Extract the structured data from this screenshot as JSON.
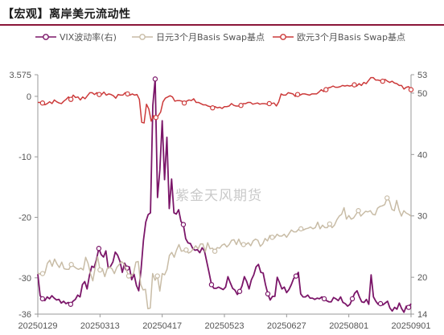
{
  "title": "【宏观】离岸美元流动性",
  "watermark": "紫金天风期货",
  "colors": {
    "vix": "#7b1669",
    "jpy": "#c8bca6",
    "eur": "#cc3a3a",
    "axis": "#999999",
    "title_rule": "#8a1538"
  },
  "chart_data": {
    "type": "line",
    "x_tick_labels": [
      "20250129",
      "20250313",
      "20250417",
      "20250523",
      "20250627",
      "20250801",
      "20250901"
    ],
    "left_axis": {
      "ticks": [
        3.575,
        0,
        -10,
        -20,
        -30,
        -36
      ],
      "tick_labels": [
        "3.575",
        "0",
        "-10",
        "-20",
        "-30",
        "-36"
      ],
      "ylim": [
        -36,
        3.575
      ]
    },
    "right_axis": {
      "ticks": [
        53,
        50,
        40,
        30,
        20,
        14
      ],
      "tick_labels": [
        "53",
        "50",
        "40",
        "30",
        "20",
        "14"
      ],
      "ylim": [
        14,
        53
      ]
    },
    "legend_position": "top",
    "series": [
      {
        "name": "VIX波动率(右)",
        "axis": "right",
        "marker": "circle",
        "marker_every": 12,
        "values": [
          20.5,
          17,
          16.5,
          16.2,
          16.8,
          16.5,
          17,
          16.6,
          16.3,
          16.4,
          15.8,
          16.1,
          15.7,
          15.9,
          15.6,
          16.1,
          16.4,
          17.1,
          16.8,
          18.8,
          19.3,
          18.1,
          20.3,
          21.8,
          21.6,
          22.9,
          24.7,
          23.7,
          23.3,
          24.3,
          21.5,
          21.8,
          22.5,
          24.1,
          23.6,
          22.6,
          20.8,
          22.3,
          21.5,
          21.7,
          19.6,
          20.5,
          18.7,
          17.8,
          21.3,
          26,
          29,
          30.2,
          30.5,
          48,
          52.3,
          33,
          37.5,
          45.5,
          35.9,
          42.8,
          31.2,
          36,
          30.5,
          30.3,
          31,
          29.1,
          28.6,
          26.3,
          25.6,
          25.5,
          24.7,
          24.4,
          24.5,
          24,
          24.8,
          24.3,
          22.5,
          20.7,
          18.8,
          18.2,
          18.2,
          18.4,
          18.2,
          18,
          18.4,
          20.1,
          19.1,
          18.2,
          17.9,
          17.2,
          17.7,
          18.6,
          20.1,
          19.3,
          18.1,
          19.6,
          20.4,
          21.7,
          22.1,
          20.8,
          20.7,
          18.8,
          17.3,
          16.3,
          16.9,
          16.9,
          20,
          19.1,
          18.1,
          18.4,
          17.5,
          18,
          18.8,
          19.8,
          20.2,
          20.8,
          17.3,
          16.8,
          16.8,
          17.1,
          16.6,
          16.6,
          16.4,
          16.6,
          16.5,
          16.8,
          16.5,
          16.2,
          16,
          16,
          16.7,
          16.5,
          16.2,
          16.8,
          15.9,
          15.7,
          15.3,
          15.6,
          16.5,
          17.4,
          17.8,
          16.8,
          16,
          15.9,
          16.4,
          15.6,
          20.4,
          16.8,
          16.1,
          15.6,
          15.7,
          15.5,
          15.8,
          16.1,
          15,
          14.5,
          15.1,
          14.8,
          15.8,
          14.9,
          14.3,
          15.3,
          15.1,
          15.7
        ]
      },
      {
        "name": "日元3个月Basis Swap基点",
        "axis": "left",
        "marker": "circle",
        "marker_every": 12,
        "values": [
          -29.2,
          -29.4,
          -29.3,
          -29.2,
          -27.6,
          -27.1,
          -28.1,
          -26.9,
          -27.7,
          -28.3,
          -27.4,
          -28.5,
          -28.6,
          -28.6,
          -27.8,
          -28.1,
          -28.4,
          -28.6,
          -28.4,
          -28.7,
          -26.6,
          -27.6,
          -29.3,
          -30.5,
          -28.3,
          -26.5,
          -28.7,
          -28.5,
          -29.8,
          -28.5,
          -28.2,
          -28.5,
          -29.3,
          -28.3,
          -27.8,
          -27.3,
          -27.7,
          -28.7,
          -29.7,
          -29.7,
          -29.3,
          -27.4,
          -27.3,
          -31.1,
          -32,
          -31.9,
          -35.1,
          -35,
          -29.3,
          -30.4,
          -29.7,
          -32.2,
          -29.3,
          -29.5,
          -28.6,
          -26.3,
          -25.8,
          -26.6,
          -25.4,
          -24.5,
          -25.6,
          -25.5,
          -25.4,
          -25.9,
          -25.7,
          -25.2,
          -24.7,
          -25.2,
          -24.4,
          -24.4,
          -25.7,
          -24.2,
          -25.2,
          -25.1,
          -25.6,
          -25,
          -25.1,
          -24.6,
          -24.4,
          -24.9,
          -24.5,
          -23.8,
          -23.7,
          -24.5,
          -23.6,
          -24.5,
          -24.5,
          -24.5,
          -24.2,
          -24.7,
          -23.9,
          -23.6,
          -23.8,
          -24.8,
          -24.4,
          -23.5,
          -23.9,
          -23,
          -23.3,
          -23.4,
          -22.8,
          -23.1,
          -23.1,
          -22.8,
          -23.3,
          -22.7,
          -22.1,
          -22.4,
          -22.4,
          -22,
          -21.9,
          -22.1,
          -21.9,
          -21.8,
          -21.6,
          -21.9,
          -21.7,
          -20.8,
          -21.9,
          -21.3,
          -21.7,
          -21.7,
          -21.1,
          -21.7,
          -21.3,
          -20.4,
          -19.8,
          -19.5,
          -18.4,
          -20.3,
          -19.7,
          -20.3,
          -20.1,
          -19.5,
          -18.9,
          -19.8,
          -19.4,
          -19,
          -19.1,
          -18.9,
          -19.5,
          -19.6,
          -18.5,
          -18.2,
          -18.1,
          -17.9,
          -16.8,
          -17.3,
          -18.7,
          -18.9,
          -17.2,
          -18.8,
          -19.8,
          -18.9,
          -19.3,
          -19.5,
          -19.8
        ]
      },
      {
        "name": "欧元3个月Basis Swap基点",
        "axis": "left",
        "marker": "circle",
        "marker_every": 12,
        "values": [
          -1,
          -1,
          -1.1,
          -1.4,
          -1.2,
          -0.9,
          -1.2,
          -0.6,
          -0.9,
          -1.1,
          -1.2,
          -0.8,
          -0.5,
          -0.1,
          -0.5,
          0.2,
          -0.2,
          -0.1,
          -0.6,
          -0.1,
          -0.4,
          0.1,
          0.6,
          0.6,
          0.3,
          0.6,
          0.3,
          0.3,
          0.7,
          0.2,
          0.4,
          0.3,
          0.1,
          -0.3,
          0.3,
          0.2,
          0.2,
          0.6,
          0.4,
          0.2,
          0.4,
          0.2,
          0.3,
          -0.5,
          -4.3,
          -4.4,
          -1.3,
          -2.1,
          -4.1,
          -3.2,
          -3.5,
          -3.2,
          -2.6,
          -0.9,
          -0.3,
          -0.1,
          0.1,
          -0.1,
          -0.8,
          -0.7,
          -0.7,
          -0.8,
          -1.1,
          -0.8,
          -0.6,
          -0.7,
          -0.4,
          -1,
          -1,
          -1.2,
          -1.4,
          -1.4,
          -1.6,
          -1.7,
          -1.9,
          -1.7,
          -1.9,
          -1.8,
          -2,
          -1.7,
          -1.7,
          -1.6,
          -1.2,
          -1.5,
          -1.6,
          -1.6,
          -1.5,
          -1.2,
          -1.2,
          -1,
          -1,
          -1.3,
          -1.2,
          -1.1,
          -1.3,
          -1.2,
          -1.2,
          -1.3,
          -1.2,
          -1.2,
          -1.1,
          -1.6,
          -0.9,
          0.4,
          0.2,
          0.2,
          0.6,
          0.5,
          0.4,
          0,
          0.3,
          0.2,
          0.4,
          0.4,
          0.3,
          0.2,
          0.4,
          0.4,
          0.4,
          0.7,
          1.1,
          0.8,
          1.1,
          1.4,
          1.5,
          1.7,
          1.5,
          1.5,
          1.6,
          1.8,
          1.7,
          1.8,
          1.7,
          1.8,
          1.9,
          1.7,
          2.1,
          1.8,
          2.3,
          2.1,
          2.6,
          3.1,
          3.1,
          2.7,
          2.7,
          2.6,
          2.5,
          2.8,
          2.5,
          2.3,
          2.5,
          2.2,
          2.1,
          1.8,
          1.8,
          1.2,
          1.5,
          1.6,
          1.1
        ]
      }
    ]
  }
}
